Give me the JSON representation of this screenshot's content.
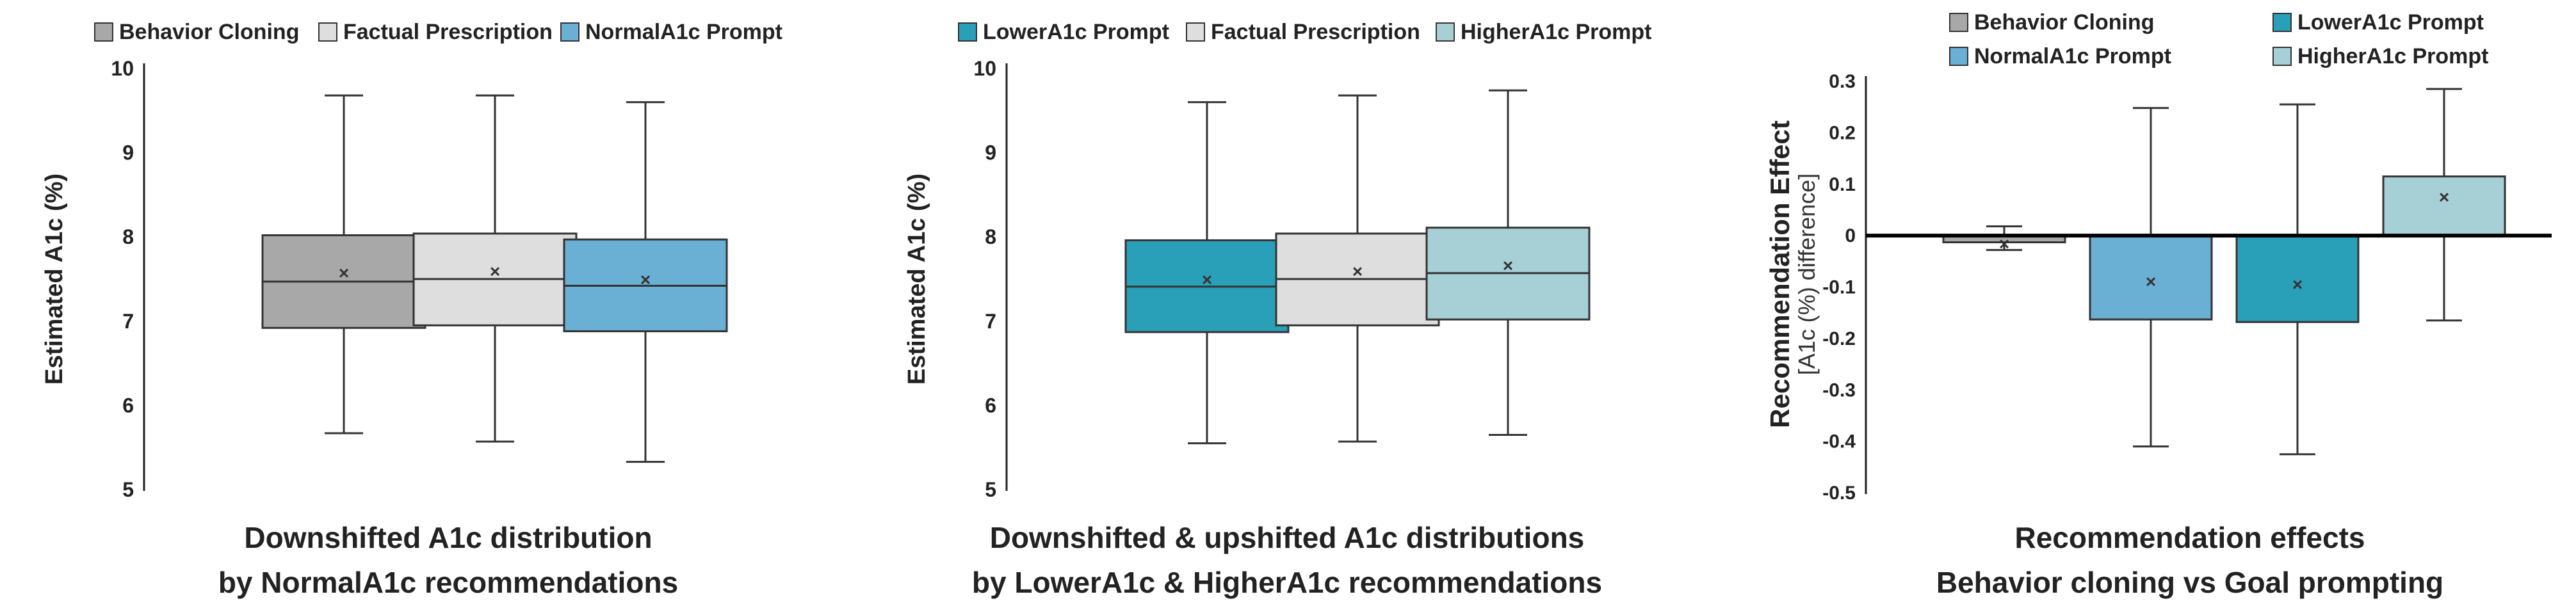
{
  "colors": {
    "behavior_cloning": "#a8a8a8",
    "factual_prescription": "#dedede",
    "normal_a1c": "#6aafd4",
    "lower_a1c": "#2aa0b8",
    "higher_a1c": "#a6d0d5",
    "edge": "#333333"
  },
  "chart_data": [
    {
      "type": "box",
      "title": [
        "Downshifted A1c distribution",
        "by NormalA1c recommendations"
      ],
      "ylabel": "Estimated A1c (%)",
      "ylim": [
        5,
        10
      ],
      "yticks": [
        "5",
        "6",
        "7",
        "8",
        "9",
        "10"
      ],
      "legend": [
        "Behavior Cloning",
        "Factual Prescription",
        "NormalA1c Prompt"
      ],
      "legend_position": "top",
      "series": [
        {
          "name": "Behavior Cloning",
          "whisker_low": 5.67,
          "q1": 6.92,
          "median": 7.47,
          "q3": 8.02,
          "whisker_high": 9.68,
          "mean": 7.56
        },
        {
          "name": "Factual Prescription",
          "whisker_low": 5.57,
          "q1": 6.95,
          "median": 7.5,
          "q3": 8.04,
          "whisker_high": 9.68,
          "mean": 7.58
        },
        {
          "name": "NormalA1c Prompt",
          "whisker_low": 5.33,
          "q1": 6.88,
          "median": 7.42,
          "q3": 7.97,
          "whisker_high": 9.6,
          "mean": 7.48
        }
      ]
    },
    {
      "type": "box",
      "title": [
        "Downshifted & upshifted A1c distributions",
        "by LowerA1c & HigherA1c recommendations"
      ],
      "ylabel": "Estimated A1c (%)",
      "ylim": [
        5,
        10
      ],
      "yticks": [
        "5",
        "6",
        "7",
        "8",
        "9",
        "10"
      ],
      "legend": [
        "LowerA1c Prompt",
        "Factual Prescription",
        "HigherA1c Prompt"
      ],
      "legend_position": "top",
      "series": [
        {
          "name": "LowerA1c Prompt",
          "whisker_low": 5.55,
          "q1": 6.87,
          "median": 7.41,
          "q3": 7.96,
          "whisker_high": 9.6,
          "mean": 7.48
        },
        {
          "name": "Factual Prescription",
          "whisker_low": 5.57,
          "q1": 6.95,
          "median": 7.5,
          "q3": 8.04,
          "whisker_high": 9.68,
          "mean": 7.58
        },
        {
          "name": "HigherA1c Prompt",
          "whisker_low": 5.65,
          "q1": 7.02,
          "median": 7.57,
          "q3": 8.11,
          "whisker_high": 9.74,
          "mean": 7.65
        }
      ]
    },
    {
      "type": "bar",
      "title": [
        "Recommendation effects",
        "Behavior cloning   vs   Goal prompting"
      ],
      "ylabel": "Recommendation Effect",
      "ylabel_sub": "[A1c (%) difference]",
      "ylim": [
        -0.5,
        0.3
      ],
      "yticks": [
        "0.3",
        "0.2",
        "0.1",
        "0",
        "-0.1",
        "-0.2",
        "-0.3",
        "-0.4",
        "-0.5"
      ],
      "legend": [
        "Behavior Cloning",
        "LowerA1c Prompt",
        "NormalA1c Prompt",
        "HigherA1c Prompt"
      ],
      "legend_position": "top",
      "series": [
        {
          "name": "Behavior Cloning",
          "bar_low": -0.013,
          "bar_high": 0,
          "mean": -0.018,
          "whisker_low": -0.028,
          "whisker_high": 0.018
        },
        {
          "name": "NormalA1c Prompt",
          "bar_low": -0.163,
          "bar_high": 0,
          "mean": -0.091,
          "whisker_low": -0.41,
          "whisker_high": 0.248
        },
        {
          "name": "LowerA1c Prompt",
          "bar_low": -0.168,
          "bar_high": 0,
          "mean": -0.097,
          "whisker_low": -0.425,
          "whisker_high": 0.255
        },
        {
          "name": "HigherA1c Prompt",
          "bar_low": 0,
          "bar_high": 0.115,
          "mean": 0.073,
          "whisker_low": -0.165,
          "whisker_high": 0.285
        }
      ]
    }
  ]
}
